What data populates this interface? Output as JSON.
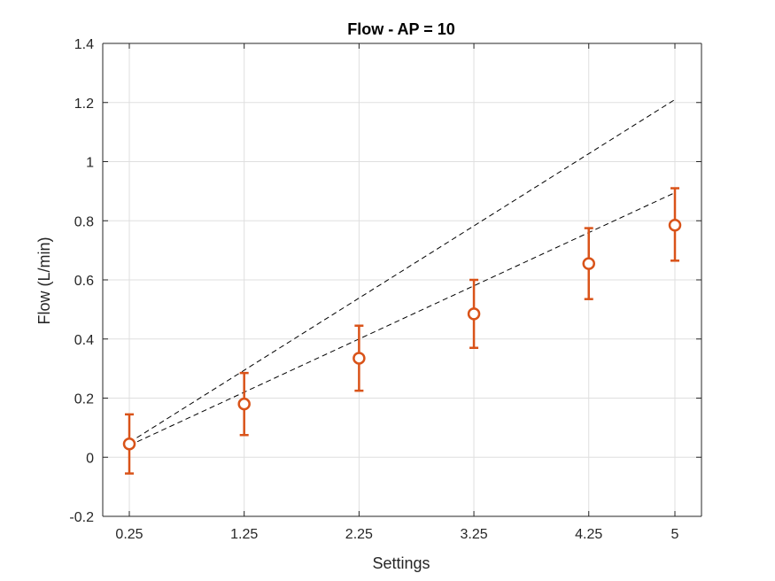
{
  "chart_data": {
    "type": "scatter",
    "title": "Flow - AP = 10",
    "xlabel": "Settings",
    "ylabel": "Flow (L/min)",
    "xlim": [
      0.25,
      5
    ],
    "ylim": [
      -0.2,
      1.4
    ],
    "xticks": [
      0.25,
      1.25,
      2.25,
      3.25,
      4.25,
      5
    ],
    "xtick_labels": [
      "0.25",
      "1.25",
      "2.25",
      "3.25",
      "4.25",
      "5"
    ],
    "yticks": [
      -0.2,
      0,
      0.2,
      0.4,
      0.6,
      0.8,
      1,
      1.2,
      1.4
    ],
    "ytick_labels": [
      "-0.2",
      "0",
      "0.2",
      "0.4",
      "0.6",
      "0.8",
      "1",
      "1.2",
      "1.4"
    ],
    "grid": true,
    "series": [
      {
        "kind": "errorbar",
        "marker": "circle",
        "color": "#D95319",
        "x": [
          0.25,
          1.25,
          2.25,
          3.25,
          4.25,
          5
        ],
        "y": [
          0.045,
          0.18,
          0.335,
          0.485,
          0.655,
          0.785
        ],
        "lower": [
          -0.055,
          0.075,
          0.225,
          0.37,
          0.535,
          0.665
        ],
        "upper": [
          0.145,
          0.285,
          0.445,
          0.6,
          0.775,
          0.91
        ]
      },
      {
        "kind": "line",
        "style": "dashed",
        "color": "#000000",
        "x": [
          0.25,
          5
        ],
        "y": [
          0.05,
          1.21
        ]
      },
      {
        "kind": "line",
        "style": "dashed",
        "color": "#000000",
        "x": [
          0.25,
          5
        ],
        "y": [
          0.04,
          0.895
        ]
      }
    ]
  }
}
